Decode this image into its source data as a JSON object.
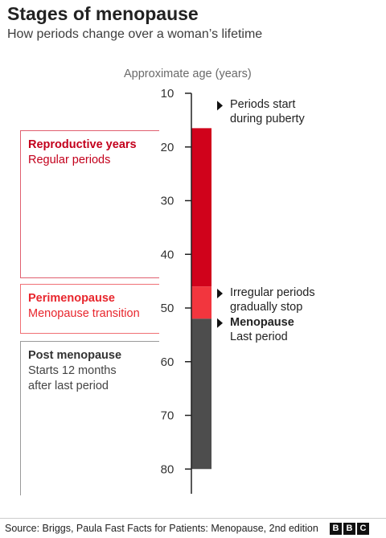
{
  "title": "Stages of menopause",
  "subtitle": "How periods change over a woman’s lifetime",
  "axis_title": "Approximate age (years)",
  "source": "Source: Briggs, Paula Fast Facts for Patients: Menopause, 2nd edition",
  "logo": [
    "B",
    "B",
    "C"
  ],
  "colors": {
    "reproductive": "#d0021b",
    "perimenopause": "#f2363e",
    "post": "#4d4d4d",
    "reproductive_text": "#c3001c",
    "perimenopause_text": "#e8262d",
    "post_text": "#333333",
    "border_reproductive": "#e06070",
    "border_perimenopause": "#f07075",
    "border_post": "#9a9a9a"
  },
  "chart_data": {
    "type": "bar",
    "orientation": "vertical-timeline",
    "axis": {
      "label": "Approximate age (years)",
      "min": 10,
      "max": 80,
      "ticks": [
        10,
        20,
        30,
        40,
        50,
        60,
        70,
        80
      ]
    },
    "segments": [
      {
        "key": "reproductive",
        "title": "Reproductive years",
        "description": "Regular periods",
        "start": 16.5,
        "end": 46
      },
      {
        "key": "perimenopause",
        "title": "Perimenopause",
        "description": "Menopause transition",
        "start": 46,
        "end": 52
      },
      {
        "key": "post",
        "title": "Post menopause",
        "description": "Starts 12 months after last period",
        "start": 52,
        "end": 80
      }
    ],
    "annotations": [
      {
        "age": 12,
        "lines": [
          "Periods start",
          "during puberty"
        ],
        "bold": false
      },
      {
        "age": 47,
        "lines": [
          "Irregular periods",
          "gradually stop"
        ],
        "bold": false
      },
      {
        "age": 52.5,
        "lines": [
          "Menopause",
          "Last period"
        ],
        "bold": true
      }
    ]
  }
}
